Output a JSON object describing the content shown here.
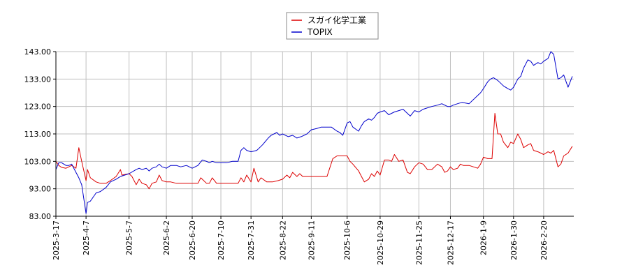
{
  "chart_data": {
    "type": "line",
    "title": "",
    "xlabel": "",
    "ylabel": "",
    "ylim": [
      83.0,
      143.0
    ],
    "y_ticks": [
      "143.00",
      "133.00",
      "123.00",
      "113.00",
      "103.00",
      "93.00",
      "83.00"
    ],
    "x_range": [
      "2025-03-17",
      "2026-03-13"
    ],
    "x_ticks": [
      "2025-3-17",
      "2025-4-7",
      "2025-5-7",
      "2025-6-2",
      "2025-6-20",
      "2025-7-10",
      "2025-7-31",
      "2025-8-22",
      "2025-9-11",
      "2025-10-6",
      "2025-10-29",
      "2025-11-25",
      "2025-12-17",
      "2026-1-9",
      "2026-1-30",
      "2026-2-20"
    ],
    "grid": true,
    "legend_position": "top-center",
    "colors": {
      "series1": "#dd0000",
      "series2": "#0000cc",
      "grid": "#c0c0c0",
      "axis": "#000000"
    },
    "series": [
      {
        "name": "スガイ化学工業",
        "points": [
          [
            "2025-03-17",
            103.0
          ],
          [
            "2025-03-19",
            101.5
          ],
          [
            "2025-03-21",
            100.8
          ],
          [
            "2025-03-24",
            100.5
          ],
          [
            "2025-03-26",
            101.0
          ],
          [
            "2025-03-28",
            101.5
          ],
          [
            "2025-03-31",
            100.5
          ],
          [
            "2025-04-02",
            108.0
          ],
          [
            "2025-04-04",
            103.0
          ],
          [
            "2025-04-07",
            96.0
          ],
          [
            "2025-04-08",
            100.0
          ],
          [
            "2025-04-10",
            97.0
          ],
          [
            "2025-04-14",
            95.5
          ],
          [
            "2025-04-17",
            95.0
          ],
          [
            "2025-04-21",
            95.0
          ],
          [
            "2025-04-24",
            96.0
          ],
          [
            "2025-04-28",
            97.5
          ],
          [
            "2025-05-01",
            100.0
          ],
          [
            "2025-05-02",
            98.0
          ],
          [
            "2025-05-07",
            98.5
          ],
          [
            "2025-05-09",
            97.5
          ],
          [
            "2025-05-12",
            94.5
          ],
          [
            "2025-05-14",
            96.5
          ],
          [
            "2025-05-16",
            95.0
          ],
          [
            "2025-05-19",
            94.5
          ],
          [
            "2025-05-21",
            93.0
          ],
          [
            "2025-05-23",
            95.0
          ],
          [
            "2025-05-26",
            95.5
          ],
          [
            "2025-05-28",
            98.0
          ],
          [
            "2025-05-30",
            96.0
          ],
          [
            "2025-06-02",
            95.5
          ],
          [
            "2025-06-05",
            95.5
          ],
          [
            "2025-06-09",
            95.0
          ],
          [
            "2025-06-12",
            95.0
          ],
          [
            "2025-06-16",
            95.0
          ],
          [
            "2025-06-20",
            95.0
          ],
          [
            "2025-06-24",
            95.0
          ],
          [
            "2025-06-26",
            97.0
          ],
          [
            "2025-06-30",
            95.0
          ],
          [
            "2025-07-02",
            95.0
          ],
          [
            "2025-07-04",
            97.0
          ],
          [
            "2025-07-07",
            95.0
          ],
          [
            "2025-07-10",
            95.0
          ],
          [
            "2025-07-14",
            95.0
          ],
          [
            "2025-07-18",
            95.0
          ],
          [
            "2025-07-22",
            95.0
          ],
          [
            "2025-07-24",
            97.0
          ],
          [
            "2025-07-26",
            95.5
          ],
          [
            "2025-07-28",
            98.0
          ],
          [
            "2025-07-31",
            95.5
          ],
          [
            "2025-08-02",
            100.5
          ],
          [
            "2025-08-05",
            95.5
          ],
          [
            "2025-08-07",
            97.0
          ],
          [
            "2025-08-11",
            95.5
          ],
          [
            "2025-08-15",
            95.5
          ],
          [
            "2025-08-19",
            96.0
          ],
          [
            "2025-08-22",
            96.5
          ],
          [
            "2025-08-25",
            98.0
          ],
          [
            "2025-08-27",
            97.0
          ],
          [
            "2025-08-29",
            99.0
          ],
          [
            "2025-09-01",
            97.5
          ],
          [
            "2025-09-03",
            98.5
          ],
          [
            "2025-09-05",
            97.5
          ],
          [
            "2025-09-09",
            97.5
          ],
          [
            "2025-09-11",
            97.5
          ],
          [
            "2025-09-16",
            97.5
          ],
          [
            "2025-09-22",
            97.5
          ],
          [
            "2025-09-26",
            104.0
          ],
          [
            "2025-09-29",
            105.0
          ],
          [
            "2025-10-03",
            105.0
          ],
          [
            "2025-10-06",
            105.0
          ],
          [
            "2025-10-08",
            103.0
          ],
          [
            "2025-10-10",
            102.0
          ],
          [
            "2025-10-14",
            99.5
          ],
          [
            "2025-10-16",
            97.5
          ],
          [
            "2025-10-18",
            95.5
          ],
          [
            "2025-10-21",
            96.5
          ],
          [
            "2025-10-23",
            98.5
          ],
          [
            "2025-10-25",
            97.5
          ],
          [
            "2025-10-27",
            99.5
          ],
          [
            "2025-10-29",
            98.0
          ],
          [
            "2025-11-01",
            103.5
          ],
          [
            "2025-11-04",
            103.5
          ],
          [
            "2025-11-06",
            103.0
          ],
          [
            "2025-11-08",
            105.5
          ],
          [
            "2025-11-11",
            103.0
          ],
          [
            "2025-11-14",
            103.5
          ],
          [
            "2025-11-17",
            99.0
          ],
          [
            "2025-11-19",
            98.5
          ],
          [
            "2025-11-22",
            101.0
          ],
          [
            "2025-11-25",
            102.5
          ],
          [
            "2025-11-28",
            102.0
          ],
          [
            "2025-12-01",
            100.0
          ],
          [
            "2025-12-04",
            100.0
          ],
          [
            "2025-12-08",
            102.0
          ],
          [
            "2025-12-11",
            101.0
          ],
          [
            "2025-12-13",
            99.0
          ],
          [
            "2025-12-15",
            99.5
          ],
          [
            "2025-12-17",
            101.0
          ],
          [
            "2025-12-19",
            100.0
          ],
          [
            "2025-12-22",
            100.5
          ],
          [
            "2025-12-24",
            102.0
          ],
          [
            "2025-12-26",
            101.5
          ],
          [
            "2025-12-30",
            101.5
          ],
          [
            "2026-01-05",
            100.5
          ],
          [
            "2026-01-07",
            102.0
          ],
          [
            "2026-01-09",
            104.5
          ],
          [
            "2026-01-12",
            104.0
          ],
          [
            "2026-01-15",
            104.0
          ],
          [
            "2026-01-17",
            120.5
          ],
          [
            "2026-01-19",
            113.0
          ],
          [
            "2026-01-21",
            113.0
          ],
          [
            "2026-01-23",
            110.0
          ],
          [
            "2026-01-26",
            108.0
          ],
          [
            "2026-01-28",
            110.0
          ],
          [
            "2026-01-30",
            109.5
          ],
          [
            "2026-02-02",
            113.0
          ],
          [
            "2026-02-04",
            111.0
          ],
          [
            "2026-02-06",
            108.0
          ],
          [
            "2026-02-09",
            109.0
          ],
          [
            "2026-02-11",
            109.5
          ],
          [
            "2026-02-13",
            107.0
          ],
          [
            "2026-02-16",
            106.5
          ],
          [
            "2026-02-18",
            106.0
          ],
          [
            "2026-02-20",
            105.5
          ],
          [
            "2026-02-23",
            106.5
          ],
          [
            "2026-02-25",
            106.0
          ],
          [
            "2026-02-27",
            107.0
          ],
          [
            "2026-03-02",
            101.0
          ],
          [
            "2026-03-04",
            102.0
          ],
          [
            "2026-03-06",
            105.0
          ],
          [
            "2026-03-09",
            106.0
          ],
          [
            "2026-03-12",
            108.5
          ]
        ]
      },
      {
        "name": "TOPIX",
        "points": [
          [
            "2025-03-17",
            100.0
          ],
          [
            "2025-03-19",
            102.5
          ],
          [
            "2025-03-21",
            102.5
          ],
          [
            "2025-03-24",
            101.5
          ],
          [
            "2025-03-26",
            101.5
          ],
          [
            "2025-03-28",
            102.0
          ],
          [
            "2025-03-31",
            99.0
          ],
          [
            "2025-04-02",
            97.0
          ],
          [
            "2025-04-04",
            94.5
          ],
          [
            "2025-04-07",
            84.0
          ],
          [
            "2025-04-08",
            88.0
          ],
          [
            "2025-04-10",
            88.5
          ],
          [
            "2025-04-14",
            91.5
          ],
          [
            "2025-04-17",
            92.0
          ],
          [
            "2025-04-21",
            93.5
          ],
          [
            "2025-04-24",
            95.5
          ],
          [
            "2025-04-28",
            96.5
          ],
          [
            "2025-05-01",
            97.5
          ],
          [
            "2025-05-07",
            98.5
          ],
          [
            "2025-05-12",
            100.0
          ],
          [
            "2025-05-14",
            100.5
          ],
          [
            "2025-05-16",
            100.0
          ],
          [
            "2025-05-19",
            100.5
          ],
          [
            "2025-05-21",
            99.5
          ],
          [
            "2025-05-23",
            100.5
          ],
          [
            "2025-05-26",
            101.0
          ],
          [
            "2025-05-28",
            102.0
          ],
          [
            "2025-05-30",
            101.0
          ],
          [
            "2025-06-02",
            100.5
          ],
          [
            "2025-06-05",
            101.5
          ],
          [
            "2025-06-09",
            101.5
          ],
          [
            "2025-06-12",
            101.0
          ],
          [
            "2025-06-16",
            101.5
          ],
          [
            "2025-06-20",
            100.5
          ],
          [
            "2025-06-24",
            101.5
          ],
          [
            "2025-06-27",
            103.5
          ],
          [
            "2025-06-30",
            103.0
          ],
          [
            "2025-07-02",
            102.5
          ],
          [
            "2025-07-04",
            103.0
          ],
          [
            "2025-07-07",
            102.5
          ],
          [
            "2025-07-10",
            102.5
          ],
          [
            "2025-07-14",
            102.5
          ],
          [
            "2025-07-18",
            103.0
          ],
          [
            "2025-07-22",
            103.0
          ],
          [
            "2025-07-24",
            107.0
          ],
          [
            "2025-07-26",
            108.0
          ],
          [
            "2025-07-28",
            107.0
          ],
          [
            "2025-07-31",
            106.5
          ],
          [
            "2025-08-04",
            107.0
          ],
          [
            "2025-08-06",
            108.0
          ],
          [
            "2025-08-08",
            109.0
          ],
          [
            "2025-08-12",
            111.5
          ],
          [
            "2025-08-14",
            112.5
          ],
          [
            "2025-08-18",
            113.5
          ],
          [
            "2025-08-20",
            112.5
          ],
          [
            "2025-08-22",
            113.0
          ],
          [
            "2025-08-26",
            112.0
          ],
          [
            "2025-08-29",
            112.5
          ],
          [
            "2025-09-01",
            111.5
          ],
          [
            "2025-09-04",
            112.0
          ],
          [
            "2025-09-08",
            113.0
          ],
          [
            "2025-09-11",
            114.5
          ],
          [
            "2025-09-15",
            115.0
          ],
          [
            "2025-09-18",
            115.5
          ],
          [
            "2025-09-22",
            115.5
          ],
          [
            "2025-09-25",
            115.5
          ],
          [
            "2025-09-29",
            114.0
          ],
          [
            "2025-10-01",
            113.5
          ],
          [
            "2025-10-03",
            112.5
          ],
          [
            "2025-10-06",
            117.0
          ],
          [
            "2025-10-08",
            117.5
          ],
          [
            "2025-10-10",
            115.5
          ],
          [
            "2025-10-14",
            114.0
          ],
          [
            "2025-10-16",
            116.0
          ],
          [
            "2025-10-18",
            117.5
          ],
          [
            "2025-10-21",
            118.5
          ],
          [
            "2025-10-23",
            118.0
          ],
          [
            "2025-10-25",
            119.0
          ],
          [
            "2025-10-27",
            120.5
          ],
          [
            "2025-10-29",
            121.0
          ],
          [
            "2025-11-01",
            121.5
          ],
          [
            "2025-11-04",
            120.0
          ],
          [
            "2025-11-06",
            120.5
          ],
          [
            "2025-11-08",
            121.0
          ],
          [
            "2025-11-11",
            121.5
          ],
          [
            "2025-11-14",
            122.0
          ],
          [
            "2025-11-17",
            120.5
          ],
          [
            "2025-11-19",
            119.5
          ],
          [
            "2025-11-22",
            121.5
          ],
          [
            "2025-11-25",
            121.0
          ],
          [
            "2025-11-28",
            122.0
          ],
          [
            "2025-12-01",
            122.5
          ],
          [
            "2025-12-04",
            123.0
          ],
          [
            "2025-12-08",
            123.5
          ],
          [
            "2025-12-11",
            124.0
          ],
          [
            "2025-12-15",
            123.0
          ],
          [
            "2025-12-17",
            123.0
          ],
          [
            "2025-12-19",
            123.5
          ],
          [
            "2025-12-22",
            124.0
          ],
          [
            "2025-12-25",
            124.5
          ],
          [
            "2025-12-30",
            124.0
          ],
          [
            "2026-01-05",
            127.0
          ],
          [
            "2026-01-07",
            128.0
          ],
          [
            "2026-01-09",
            129.5
          ],
          [
            "2026-01-12",
            132.0
          ],
          [
            "2026-01-14",
            133.0
          ],
          [
            "2026-01-16",
            133.5
          ],
          [
            "2026-01-19",
            132.5
          ],
          [
            "2026-01-21",
            131.5
          ],
          [
            "2026-01-23",
            130.5
          ],
          [
            "2026-01-26",
            129.5
          ],
          [
            "2026-01-28",
            129.0
          ],
          [
            "2026-01-30",
            130.0
          ],
          [
            "2026-02-02",
            133.0
          ],
          [
            "2026-02-04",
            134.0
          ],
          [
            "2026-02-06",
            137.0
          ],
          [
            "2026-02-09",
            140.0
          ],
          [
            "2026-02-11",
            139.5
          ],
          [
            "2026-02-13",
            138.0
          ],
          [
            "2026-02-16",
            139.0
          ],
          [
            "2026-02-18",
            138.5
          ],
          [
            "2026-02-20",
            139.5
          ],
          [
            "2026-02-23",
            140.5
          ],
          [
            "2026-02-25",
            143.0
          ],
          [
            "2026-02-27",
            142.0
          ],
          [
            "2026-03-02",
            133.0
          ],
          [
            "2026-03-04",
            133.5
          ],
          [
            "2026-03-06",
            134.5
          ],
          [
            "2026-03-09",
            130.0
          ],
          [
            "2026-03-12",
            134.0
          ]
        ]
      }
    ]
  }
}
